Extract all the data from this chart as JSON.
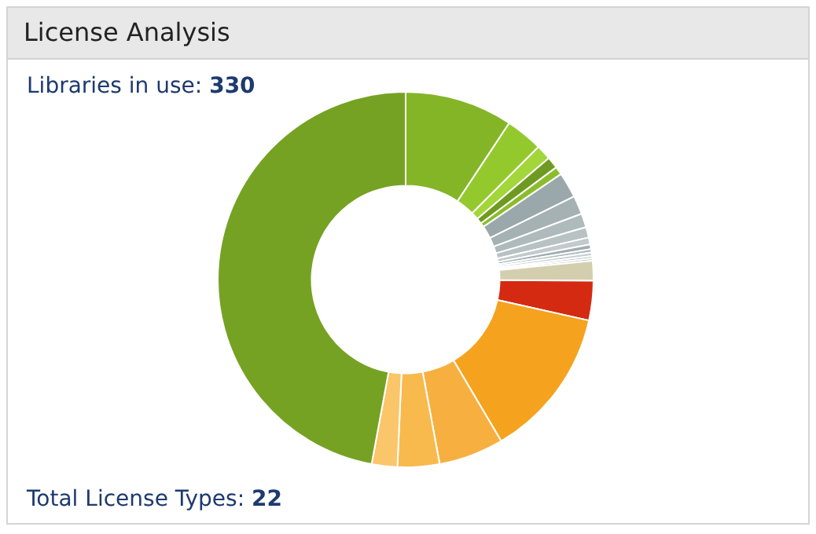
{
  "chart_data": {
    "type": "donut",
    "title": "License Analysis",
    "subtitle": "Libraries in use: 330",
    "annotations": [
      "Total License Types: 22"
    ],
    "categories": [
      null,
      null,
      null,
      null,
      null,
      null,
      null,
      null,
      null,
      null,
      null,
      null,
      null,
      null,
      null,
      null,
      null,
      null,
      null,
      null,
      null,
      null
    ],
    "values": [
      9.3,
      3.2,
      1.3,
      1.0,
      0.7,
      2.2,
      1.6,
      1.2,
      0.9,
      0.6,
      0.4,
      0.3,
      0.3,
      0.2,
      0.2,
      1.7,
      3.4,
      13,
      5.6,
      3.6,
      2.2,
      47.1
    ],
    "colors": [
      "#84b526",
      "#93c92d",
      "#a3d63a",
      "#6f9a22",
      "#8bbd2b",
      "#9aa8ab",
      "#a5b1b3",
      "#afbabc",
      "#b8c1c3",
      "#c2cacc",
      "#9fadb0",
      "#b0bbbe",
      "#c8cfd1",
      "#a7b3b6",
      "#bcc5c8",
      "#d3cfae",
      "#d42a11",
      "#f5a31e",
      "#f7b040",
      "#f8b94d",
      "#fbc56a",
      "#76a224"
    ],
    "legend": false
  }
}
